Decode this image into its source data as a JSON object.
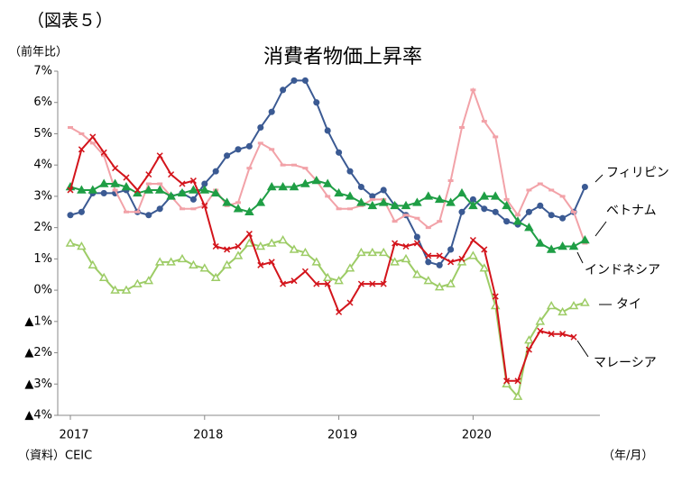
{
  "figure_label": "（図表５）",
  "chart_data": {
    "type": "line",
    "title": "消費者物価上昇率",
    "y_label": "（前年比）",
    "x_label": "（年/月）",
    "source": "（資料）CEIC",
    "categories": [
      "2017",
      null,
      null,
      null,
      null,
      null,
      null,
      null,
      null,
      null,
      null,
      null,
      "2018",
      null,
      null,
      null,
      null,
      null,
      null,
      null,
      null,
      null,
      null,
      null,
      "2019",
      null,
      null,
      null,
      null,
      null,
      null,
      null,
      null,
      null,
      null,
      null,
      "2020",
      null,
      null,
      null,
      null,
      null,
      null,
      null,
      null,
      null,
      null
    ],
    "ylim": [
      -4,
      7
    ],
    "yticks": [
      {
        "value": -4,
        "label": "▲4%"
      },
      {
        "value": -3,
        "label": "▲3%"
      },
      {
        "value": -2,
        "label": "▲2%"
      },
      {
        "value": -1,
        "label": "▲1%"
      },
      {
        "value": 0,
        "label": "0%"
      },
      {
        "value": 1,
        "label": "1%"
      },
      {
        "value": 2,
        "label": "2%"
      },
      {
        "value": 3,
        "label": "3%"
      },
      {
        "value": 4,
        "label": "4%"
      },
      {
        "value": 5,
        "label": "5%"
      },
      {
        "value": 6,
        "label": "6%"
      },
      {
        "value": 7,
        "label": "7%"
      }
    ],
    "grid": false,
    "series": [
      {
        "name": "フィリピン",
        "color": "#3b5a93",
        "marker": "circle",
        "values": [
          2.4,
          2.5,
          3.1,
          3.1,
          3.1,
          3.2,
          2.5,
          2.4,
          2.6,
          3.0,
          3.1,
          2.9,
          3.4,
          3.8,
          4.3,
          4.5,
          4.6,
          5.2,
          5.7,
          6.4,
          6.7,
          6.7,
          6.0,
          5.1,
          4.4,
          3.8,
          3.3,
          3.0,
          3.2,
          2.7,
          2.4,
          1.7,
          0.9,
          0.8,
          1.3,
          2.5,
          2.9,
          2.6,
          2.5,
          2.2,
          2.1,
          2.5,
          2.7,
          2.4,
          2.3,
          2.5,
          3.3
        ]
      },
      {
        "name": "ベトナム",
        "color": "#f2a2a8",
        "marker": "dash",
        "values": [
          5.2,
          5.0,
          4.7,
          4.3,
          3.2,
          2.5,
          2.5,
          3.4,
          3.4,
          3.0,
          2.6,
          2.6,
          2.7,
          3.2,
          2.7,
          2.8,
          3.9,
          4.7,
          4.5,
          4.0,
          4.0,
          3.9,
          3.5,
          3.0,
          2.6,
          2.6,
          2.7,
          2.9,
          2.9,
          2.2,
          2.4,
          2.3,
          2.0,
          2.2,
          3.5,
          5.2,
          6.4,
          5.4,
          4.9,
          2.9,
          2.4,
          3.2,
          3.4,
          3.2,
          3.0,
          2.5,
          1.5
        ]
      },
      {
        "name": "インドネシア",
        "color": "#1f9e45",
        "marker": "triangle",
        "values": [
          3.3,
          3.2,
          3.2,
          3.4,
          3.4,
          3.3,
          3.1,
          3.2,
          3.2,
          3.0,
          3.1,
          3.2,
          3.2,
          3.1,
          2.8,
          2.6,
          2.5,
          2.8,
          3.3,
          3.3,
          3.3,
          3.4,
          3.5,
          3.4,
          3.1,
          3.0,
          2.8,
          2.7,
          2.8,
          2.7,
          2.7,
          2.8,
          3.0,
          2.9,
          2.8,
          3.1,
          2.7,
          3.0,
          3.0,
          2.7,
          2.2,
          2.0,
          1.5,
          1.3,
          1.4,
          1.4,
          1.6
        ]
      },
      {
        "name": "タイ",
        "color": "#9dcc66",
        "marker": "triangle-open",
        "values": [
          1.5,
          1.4,
          0.8,
          0.4,
          0.0,
          0.0,
          0.2,
          0.3,
          0.9,
          0.9,
          1.0,
          0.8,
          0.7,
          0.4,
          0.8,
          1.1,
          1.5,
          1.4,
          1.5,
          1.6,
          1.3,
          1.2,
          0.9,
          0.4,
          0.3,
          0.7,
          1.2,
          1.2,
          1.2,
          0.9,
          1.0,
          0.5,
          0.3,
          0.1,
          0.2,
          0.9,
          1.1,
          0.7,
          -0.5,
          -3.0,
          -3.4,
          -1.6,
          -1.0,
          -0.5,
          -0.7,
          -0.5,
          -0.4
        ]
      },
      {
        "name": "マレーシア",
        "color": "#d3141b",
        "marker": "cross",
        "values": [
          3.2,
          4.5,
          4.9,
          4.4,
          3.9,
          3.6,
          3.2,
          3.7,
          4.3,
          3.7,
          3.4,
          3.5,
          2.7,
          1.4,
          1.3,
          1.4,
          1.8,
          0.8,
          0.9,
          0.2,
          0.3,
          0.6,
          0.2,
          0.2,
          -0.7,
          -0.4,
          0.2,
          0.2,
          0.2,
          1.5,
          1.4,
          1.5,
          1.1,
          1.1,
          0.9,
          1.0,
          1.6,
          1.3,
          -0.2,
          -2.9,
          -2.9,
          -1.9,
          -1.3,
          -1.4,
          -1.4,
          -1.5,
          null
        ]
      }
    ]
  }
}
